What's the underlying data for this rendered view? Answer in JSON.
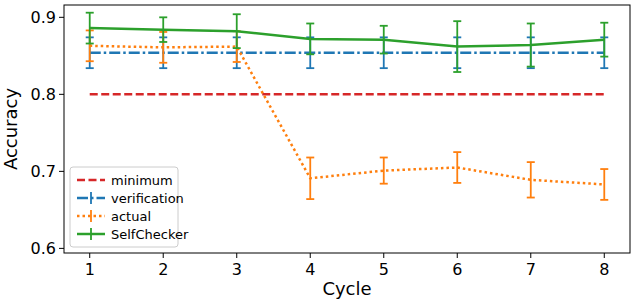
{
  "chart_data": {
    "type": "line",
    "x_label": "Cycle",
    "y_label": "Accuracy",
    "x": [
      1,
      2,
      3,
      4,
      5,
      6,
      7,
      8
    ],
    "xlim": [
      0.65,
      8.35
    ],
    "xticks": [
      1,
      2,
      3,
      4,
      5,
      6,
      7,
      8
    ],
    "ylim": [
      0.594,
      0.916
    ],
    "yticks": [
      0.6,
      0.7,
      0.8,
      0.9
    ],
    "grid": false,
    "legend": "lower left",
    "series": [
      {
        "name": "minimum",
        "color": "#d62728",
        "line_style": "dashed",
        "values": [
          0.8,
          0.8,
          0.8,
          0.8,
          0.8,
          0.8,
          0.8,
          0.8
        ]
      },
      {
        "name": "verification",
        "color": "#1f77b4",
        "line_style": "dashdot",
        "values": [
          0.854,
          0.854,
          0.854,
          0.854,
          0.854,
          0.854,
          0.854,
          0.854
        ],
        "errors": [
          0.02,
          0.02,
          0.02,
          0.02,
          0.02,
          0.02,
          0.02,
          0.02
        ]
      },
      {
        "name": "actual",
        "color": "#ff7f0e",
        "line_style": "dotted",
        "values": [
          0.863,
          0.861,
          0.862,
          0.691,
          0.701,
          0.705,
          0.689,
          0.683
        ],
        "errors": [
          0.02,
          0.02,
          0.02,
          0.027,
          0.017,
          0.02,
          0.023,
          0.02
        ]
      },
      {
        "name": "SelfChecker",
        "color": "#2ca02c",
        "line_style": "solid",
        "values": [
          0.886,
          0.884,
          0.882,
          0.872,
          0.871,
          0.862,
          0.864,
          0.871
        ],
        "errors": [
          0.02,
          0.016,
          0.022,
          0.02,
          0.018,
          0.033,
          0.028,
          0.022
        ]
      }
    ]
  }
}
